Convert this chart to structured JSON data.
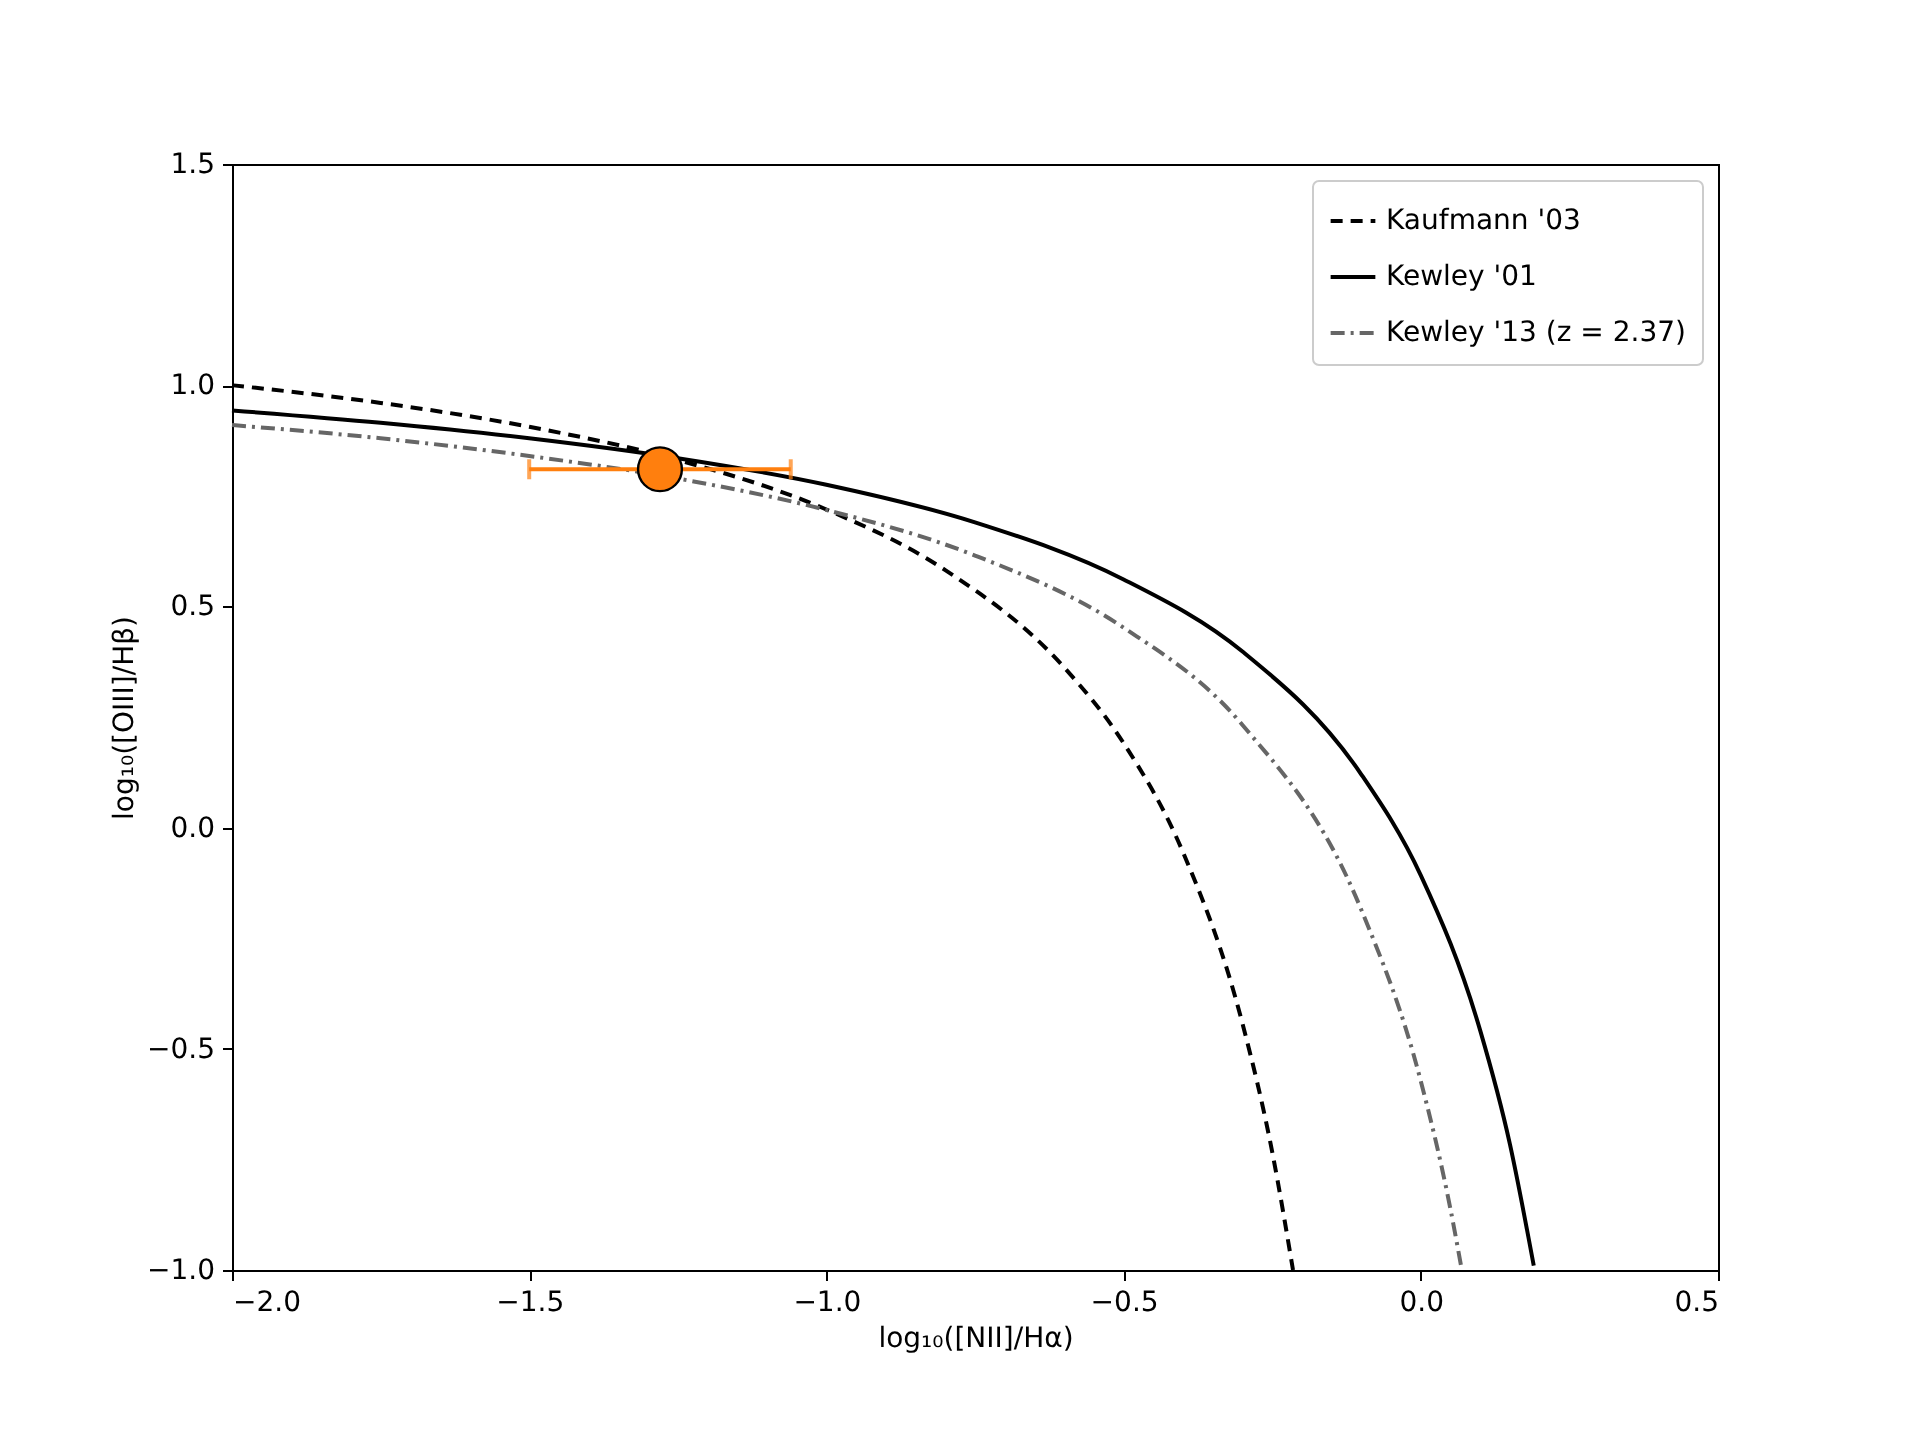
{
  "chart_data": {
    "type": "line",
    "xlabel": "log₁₀([NII]/Hα)",
    "ylabel": "log₁₀([OIII]/Hβ)",
    "xlim": [
      -2,
      0.5
    ],
    "ylim": [
      -1,
      1.5
    ],
    "xticks": [
      {
        "value": -2,
        "label": "−2.0"
      },
      {
        "value": -1.5,
        "label": "−1.5"
      },
      {
        "value": -1,
        "label": "−1.0"
      },
      {
        "value": -0.5,
        "label": "−0.5"
      },
      {
        "value": 0,
        "label": "0.0"
      },
      {
        "value": 0.5,
        "label": "0.5"
      }
    ],
    "yticks": [
      {
        "value": -1,
        "label": "−1.0"
      },
      {
        "value": -0.5,
        "label": "−0.5"
      },
      {
        "value": 0,
        "label": "0.0"
      },
      {
        "value": 0.5,
        "label": "0.5"
      },
      {
        "value": 1,
        "label": "1.0"
      },
      {
        "value": 1.5,
        "label": "1.5"
      }
    ],
    "grid": false,
    "legend": "top right",
    "series": [
      {
        "name": "Kaufmann '03",
        "color": "#000000",
        "line_style": "dashed",
        "x": [
          -2,
          -1.75,
          -1.5,
          -1.25,
          -1,
          -0.8,
          -0.6,
          -0.5,
          -0.4,
          -0.3,
          -0.25,
          -0.215
        ],
        "values": [
          1.0,
          0.96,
          0.906,
          0.831,
          0.719,
          0.582,
          0.362,
          0.191,
          -0.056,
          -0.443,
          -0.733,
          -1.0
        ]
      },
      {
        "name": "Kewley '01",
        "color": "#000000",
        "line_style": "solid",
        "x": [
          -2,
          -1.75,
          -1.5,
          -1.25,
          -1,
          -0.75,
          -0.5,
          -0.3,
          -0.1,
          0,
          0.1,
          0.15,
          0.19
        ],
        "values": [
          0.943,
          0.915,
          0.88,
          0.835,
          0.775,
          0.69,
          0.561,
          0.398,
          0.12,
          -0.108,
          -0.459,
          -0.716,
          -0.99
        ]
      },
      {
        "name": "Kewley '13 (z = 2.37)",
        "color": "#666666",
        "line_style": "dashdot",
        "x": [
          -2,
          -1.75,
          -1.5,
          -1.25,
          -1,
          -0.75,
          -0.5,
          -0.3,
          -0.1,
          0,
          0.05,
          0.069
        ],
        "values": [
          0.91,
          0.88,
          0.84,
          0.789,
          0.718,
          0.615,
          0.452,
          0.232,
          -0.186,
          -0.573,
          -0.863,
          -1.0
        ]
      },
      {
        "type": "scatter",
        "color": "#ff7f0e",
        "marker": "circle",
        "x": [
          -1.28
        ],
        "values": [
          0.81
        ],
        "xerrors": [
          [
            -1.5,
            -1.06
          ]
        ]
      }
    ]
  }
}
